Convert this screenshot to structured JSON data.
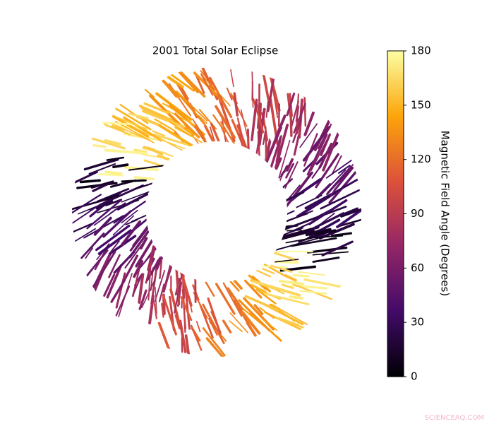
{
  "chart_data": {
    "type": "image",
    "title": "2001 Total Solar Eclipse",
    "colorbar_label": "Magnetic Field Angle (Degrees)",
    "colormap": [
      "#000004",
      "#420a68",
      "#932667",
      "#dd513a",
      "#fca50a",
      "#fcffa4"
    ],
    "clim": [
      0,
      180
    ],
    "cticks": [
      0,
      30,
      60,
      90,
      120,
      150,
      180
    ]
  },
  "watermark": "SCIENCEAQ.COM"
}
